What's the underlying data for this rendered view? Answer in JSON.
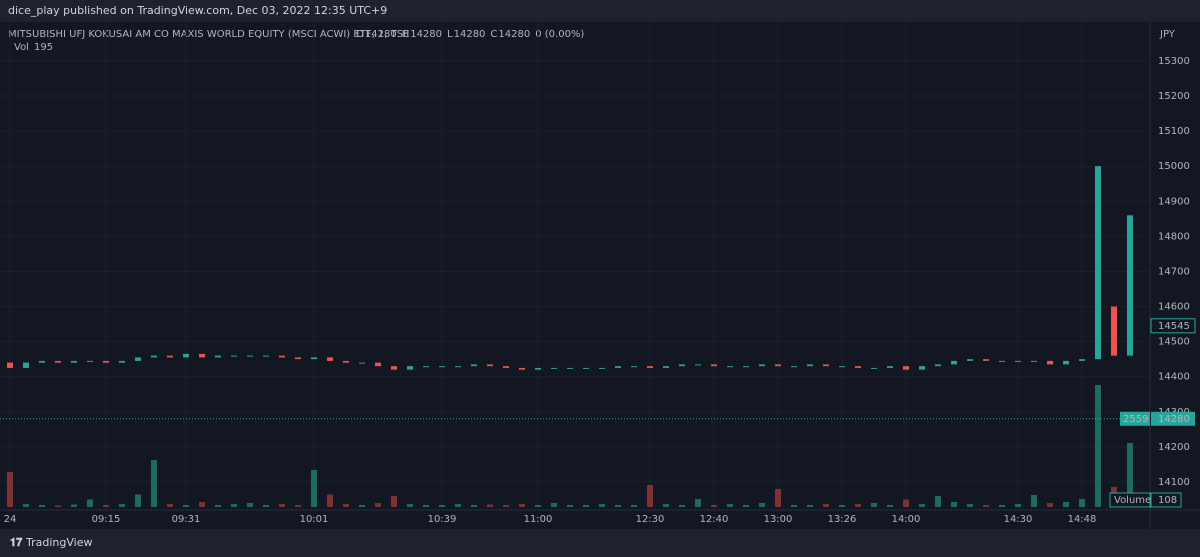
{
  "header": "dice_play published on TradingView.com, Dec 03, 2022 12:35 UTC+9",
  "footer": "TradingView",
  "chart_data": {
    "type": "candlestick",
    "symbol": "MITSUBISHI UFJ KOKUSAI AM CO MAXIS WORLD EQUITY (MSCI ACWI) ETF, 1, TSE",
    "ohlc_legend": [
      {
        "label": "O",
        "value": 14280
      },
      {
        "label": "H",
        "value": 14280
      },
      {
        "label": "L",
        "value": 14280
      },
      {
        "label": "C",
        "value": 14280
      }
    ],
    "change": "0 (0.00%)",
    "volume_legend": {
      "label": "Vol",
      "value": 195
    },
    "currency": "JPY",
    "up_color": "#26a69a",
    "down_color": "#ef5350",
    "volume_up_color": "#1e6b64",
    "volume_down_color": "#7d3335",
    "categories": [
      "24",
      null,
      null,
      null,
      null,
      null,
      "09:15",
      null,
      null,
      null,
      null,
      "09:31",
      null,
      null,
      null,
      null,
      null,
      null,
      null,
      "10:01",
      null,
      null,
      null,
      null,
      null,
      null,
      null,
      "10:39",
      null,
      null,
      null,
      null,
      null,
      "11:00",
      null,
      null,
      null,
      null,
      null,
      null,
      "12:30",
      null,
      null,
      null,
      "12:40",
      null,
      null,
      null,
      "13:00",
      null,
      null,
      null,
      "13:26",
      null,
      null,
      null,
      "14:00",
      null,
      null,
      null,
      null,
      null,
      null,
      "14:30",
      null,
      null,
      null,
      "14:48",
      null,
      null,
      null
    ],
    "open": [
      14440,
      14425,
      14440,
      14445,
      14440,
      14445,
      14445,
      14440,
      14445,
      14455,
      14460,
      14455,
      14465,
      14455,
      14460,
      14460,
      14460,
      14460,
      14455,
      14450,
      14455,
      14445,
      14440,
      14440,
      14430,
      14420,
      14430,
      14430,
      14430,
      14430,
      14435,
      14430,
      14425,
      14420,
      14425,
      14425,
      14425,
      14425,
      14425,
      14430,
      14430,
      14425,
      14430,
      14435,
      14435,
      14430,
      14430,
      14430,
      14435,
      14430,
      14430,
      14435,
      14430,
      14430,
      14425,
      14425,
      14430,
      14420,
      14430,
      14435,
      14445,
      14450,
      14445,
      14445,
      14445,
      14445,
      14435,
      14445,
      14450,
      14600,
      14460
    ],
    "close": [
      14425,
      14440,
      14445,
      14440,
      14445,
      14445,
      14440,
      14445,
      14455,
      14460,
      14455,
      14465,
      14455,
      14460,
      14460,
      14460,
      14460,
      14455,
      14450,
      14455,
      14445,
      14440,
      14440,
      14430,
      14420,
      14430,
      14430,
      14430,
      14430,
      14435,
      14430,
      14425,
      14420,
      14425,
      14425,
      14425,
      14425,
      14425,
      14430,
      14430,
      14425,
      14430,
      14435,
      14435,
      14430,
      14430,
      14430,
      14435,
      14430,
      14430,
      14435,
      14430,
      14430,
      14425,
      14425,
      14430,
      14420,
      14430,
      14435,
      14445,
      14450,
      14445,
      14445,
      14445,
      14445,
      14435,
      14445,
      14450,
      15000,
      14460,
      14860
    ],
    "volume": [
      700,
      60,
      40,
      30,
      50,
      150,
      40,
      60,
      250,
      940,
      60,
      40,
      100,
      40,
      60,
      80,
      40,
      60,
      40,
      740,
      250,
      60,
      40,
      80,
      220,
      60,
      40,
      40,
      60,
      40,
      50,
      40,
      60,
      40,
      80,
      40,
      40,
      60,
      40,
      40,
      440,
      60,
      40,
      160,
      40,
      60,
      40,
      80,
      360,
      40,
      40,
      60,
      40,
      60,
      80,
      40,
      150,
      60,
      220,
      100,
      60,
      40,
      40,
      60,
      240,
      80,
      100,
      160,
      2440,
      400,
      1280
    ],
    "ylim": [
      14020,
      15411
    ],
    "yticks": [
      14100,
      14200,
      14300,
      14400,
      14500,
      14600,
      14700,
      14800,
      14900,
      15000,
      15100,
      15200,
      15300
    ],
    "vlim": [
      0,
      4000
    ],
    "current_price": 14545,
    "last_price": 14280,
    "volume_badge": 2559,
    "volume_scale": {
      "name": "Volume",
      "value": 108
    },
    "grid": true
  }
}
